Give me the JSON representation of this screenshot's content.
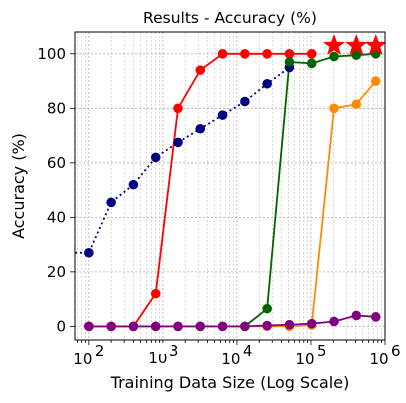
{
  "chart_data": {
    "type": "line",
    "title": "Results - Accuracy (%)",
    "xlabel": "Training Data Size (Log Scale)",
    "ylabel": "Accuracy (%)",
    "x_scale": "log",
    "xlim": [
      65,
      1000000
    ],
    "ylim": [
      -5,
      108
    ],
    "grid": true,
    "x_ticks": [
      {
        "value": 100,
        "base": "10",
        "exp": "2"
      },
      {
        "value": 10000,
        "base": "10",
        "exp": "4"
      },
      {
        "value": 100000,
        "base": "10",
        "exp": "5"
      },
      {
        "value": 1000000,
        "base": "10",
        "exp": "6"
      }
    ],
    "x_ticks_partial": [
      {
        "value": 1000,
        "base": "10",
        "exp": "3"
      }
    ],
    "y_ticks": [
      0,
      20,
      40,
      60,
      80,
      100
    ],
    "series": [
      {
        "color": "#000080",
        "line_style": "dotted",
        "marker": "circle",
        "x": [
          65,
          100,
          200,
          400,
          800,
          1600,
          3200,
          6400,
          12800,
          25600,
          51200
        ],
        "y": [
          27,
          27,
          45.5,
          52,
          62,
          67.5,
          72.5,
          77.5,
          82.5,
          89,
          95
        ]
      },
      {
        "color": "#ff0000",
        "line_style": "solid",
        "marker": "circle",
        "x": [
          100,
          200,
          400,
          800,
          1600,
          3200,
          6400,
          12800,
          25600,
          51200,
          102400
        ],
        "y": [
          0,
          0,
          0,
          12,
          80,
          94,
          100,
          100,
          100,
          100,
          100
        ]
      },
      {
        "color": "#006400",
        "line_style": "solid",
        "marker": "circle",
        "x": [
          100,
          200,
          400,
          800,
          1600,
          3200,
          6400,
          12800,
          25600,
          51200,
          102400,
          204800,
          409600,
          750000
        ],
        "y": [
          0,
          0,
          0,
          0,
          0,
          0,
          0,
          0,
          6.5,
          97,
          96.5,
          99,
          99.5,
          100
        ]
      },
      {
        "color": "#ff8c00",
        "line_style": "solid",
        "marker": "circle",
        "x": [
          100,
          200,
          400,
          800,
          1600,
          3200,
          6400,
          12800,
          25600,
          51200,
          102400,
          204800,
          409600,
          750000
        ],
        "y": [
          0,
          0,
          0,
          0,
          0,
          0,
          0,
          0,
          0,
          0,
          0.5,
          80,
          81.5,
          90
        ]
      },
      {
        "color": "#800080",
        "line_style": "solid",
        "marker": "circle",
        "x": [
          100,
          200,
          400,
          800,
          1600,
          3200,
          6400,
          12800,
          25600,
          51200,
          102400,
          204800,
          409600,
          750000
        ],
        "y": [
          0,
          0,
          0,
          0,
          0,
          0,
          0,
          0,
          0.3,
          0.6,
          1,
          1.8,
          4,
          3.5
        ]
      }
    ],
    "star_markers": {
      "color": "#ff0000",
      "x": [
        204800,
        409600,
        750000
      ],
      "y": [
        103,
        103,
        103
      ]
    }
  }
}
